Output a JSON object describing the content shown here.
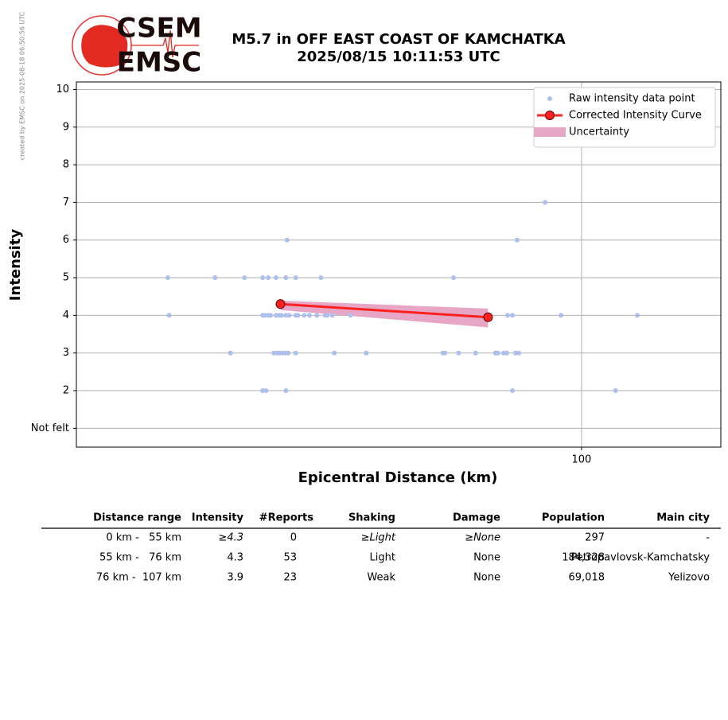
{
  "logo": {
    "top": "CSEM",
    "bottom": "EMSC"
  },
  "created_note": "created by EMSC on 2025-08-18 06:50:56 UTC",
  "chart_data": {
    "type": "scatter",
    "title": [
      "M5.7 in OFF EAST COAST OF KAMCHATKA",
      "2025/08/15 10:11:53 UTC"
    ],
    "x_label": "Epicentral Distance (km)",
    "y_label": "Intensity",
    "xlog": true,
    "xlim": [
      49.8,
      121.2
    ],
    "xticks": [
      100
    ],
    "ylim": [
      0.5,
      10.2
    ],
    "yticks": [
      {
        "value": 1,
        "label": "Not felt"
      },
      2,
      3,
      4,
      5,
      6,
      7,
      8,
      9,
      10
    ],
    "grid": true,
    "legend": "upper right",
    "series": [
      {
        "name": "Raw intensity data point",
        "type": "scatter",
        "color": "#aebfec",
        "x": [
          56.5,
          60.3,
          62.8,
          64.4,
          64.9,
          65.6,
          66.5,
          67.4,
          69.8,
          83.8,
          56.6,
          64.4,
          64.6,
          64.9,
          65.1,
          65.6,
          65.9,
          66.1,
          66.5,
          66.8,
          67.4,
          67.6,
          68.2,
          68.7,
          69.4,
          70.2,
          70.4,
          70.9,
          72.7,
          90.3,
          90.9,
          97.2,
          108.0,
          61.6,
          65.4,
          65.7,
          65.9,
          66.2,
          66.4,
          66.7,
          67.4,
          71.1,
          74.3,
          82.6,
          82.8,
          84.4,
          86.4,
          88.8,
          89.1,
          89.8,
          90.2,
          91.3,
          91.7,
          64.4,
          64.7,
          66.5,
          90.9,
          104.8,
          66.6,
          91.5,
          95.1
        ],
        "y": [
          5,
          5,
          5,
          5,
          5,
          5,
          5,
          5,
          5,
          5,
          4,
          4,
          4,
          4,
          4,
          4,
          4,
          4,
          4,
          4,
          4,
          4,
          4,
          4,
          4,
          4,
          4,
          4,
          4,
          4,
          4,
          4,
          4,
          3,
          3,
          3,
          3,
          3,
          3,
          3,
          3,
          3,
          3,
          3,
          3,
          3,
          3,
          3,
          3,
          3,
          3,
          3,
          3,
          2,
          2,
          2,
          2,
          2,
          6,
          6,
          7
        ]
      },
      {
        "name": "Corrected Intensity Curve",
        "type": "line",
        "color": "#ff2020",
        "edge": "#5a0000",
        "x": [
          66.0,
          87.9
        ],
        "y": [
          4.3,
          3.95
        ]
      },
      {
        "name": "Uncertainty",
        "type": "band",
        "color": "#e8a6c6",
        "x": [
          66.0,
          87.9
        ],
        "upper": [
          4.39,
          4.18
        ],
        "lower": [
          4.14,
          3.68
        ]
      }
    ]
  },
  "table": {
    "headers": [
      "Distance range",
      "Intensity",
      "#Reports",
      "Shaking",
      "Damage",
      "Population",
      "Main city"
    ],
    "rows": [
      [
        "0 km -   55 km",
        "≥4.3",
        "0",
        "≥Light",
        "≥None",
        "297",
        "-"
      ],
      [
        "55 km -   76 km",
        "4.3",
        "53",
        "Light",
        "None",
        "184,328",
        "Petropavlovsk-Kamchatsky"
      ],
      [
        "76 km -  107 km",
        "3.9",
        "23",
        "Weak",
        "None",
        "69,018",
        "Yelizovo"
      ]
    ]
  }
}
